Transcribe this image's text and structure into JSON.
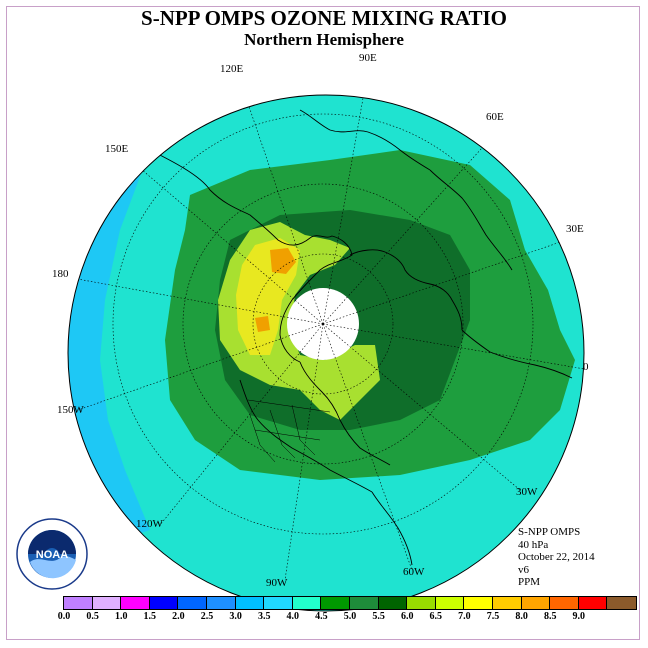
{
  "title": "S-NPP OMPS OZONE MIXING RATIO",
  "subtitle": "Northern Hemisphere",
  "longitude_labels": [
    {
      "text": "90E"
    },
    {
      "text": "60E"
    },
    {
      "text": "120E"
    },
    {
      "text": "150E"
    },
    {
      "text": "30E"
    },
    {
      "text": "180"
    },
    {
      "text": "0"
    },
    {
      "text": "150W"
    },
    {
      "text": "30W"
    },
    {
      "text": "120W"
    },
    {
      "text": "60W"
    },
    {
      "text": "90W"
    }
  ],
  "info": {
    "instrument": "S-NPP OMPS",
    "level": "40 hPa",
    "date": "October 22, 2014",
    "version": "v6",
    "units": "PPM"
  },
  "logo_text": "NOAA",
  "colorbar": {
    "ticks": [
      "0.0",
      "0.5",
      "1.0",
      "1.5",
      "2.0",
      "2.5",
      "3.0",
      "3.5",
      "4.0",
      "4.5",
      "5.0",
      "5.5",
      "6.0",
      "6.5",
      "7.0",
      "7.5",
      "8.0",
      "8.5",
      "9.0"
    ],
    "colors": [
      "#c080ff",
      "#e0b0ff",
      "#ff00ff",
      "#0000ff",
      "#0066ff",
      "#1e90ff",
      "#00bfff",
      "#20d8ff",
      "#22ffcc",
      "#009900",
      "#1e8c3a",
      "#006400",
      "#99dd00",
      "#ccff00",
      "#ffff00",
      "#ffcc00",
      "#ffa500",
      "#ff6600",
      "#ff0000",
      "#8b5a2b"
    ]
  },
  "colors": {
    "outer": "#1fe3d0",
    "low": "#1ec8f5",
    "mid": "#1e9e3e",
    "dark": "#0f6e2a",
    "high_lime": "#a8e030",
    "high_yellow": "#e8e820",
    "high_orange": "#f0a000",
    "polar_night": "#ffffff"
  }
}
